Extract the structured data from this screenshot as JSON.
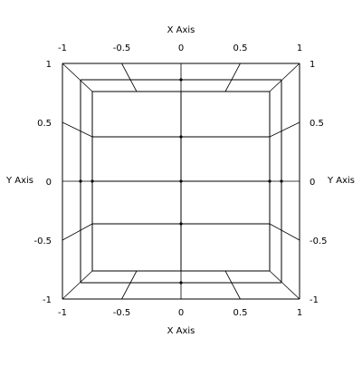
{
  "axes": {
    "x_title_top": "X Axis",
    "x_title_bottom": "X Axis",
    "y_title_left": "Y Axis",
    "y_title_right": "Y Axis"
  },
  "chart_data": {
    "type": "wireframe-box",
    "x_ticks": [
      "-1",
      "-0.5",
      "0",
      "0.5",
      "1"
    ],
    "y_ticks": [
      "1",
      "0.5",
      "0",
      "-0.5",
      "-1"
    ],
    "xlim": [
      -1,
      1
    ],
    "ylim": [
      -1,
      1
    ],
    "grid": false,
    "colors": {
      "line": "#000000",
      "background": "#ffffff"
    }
  }
}
